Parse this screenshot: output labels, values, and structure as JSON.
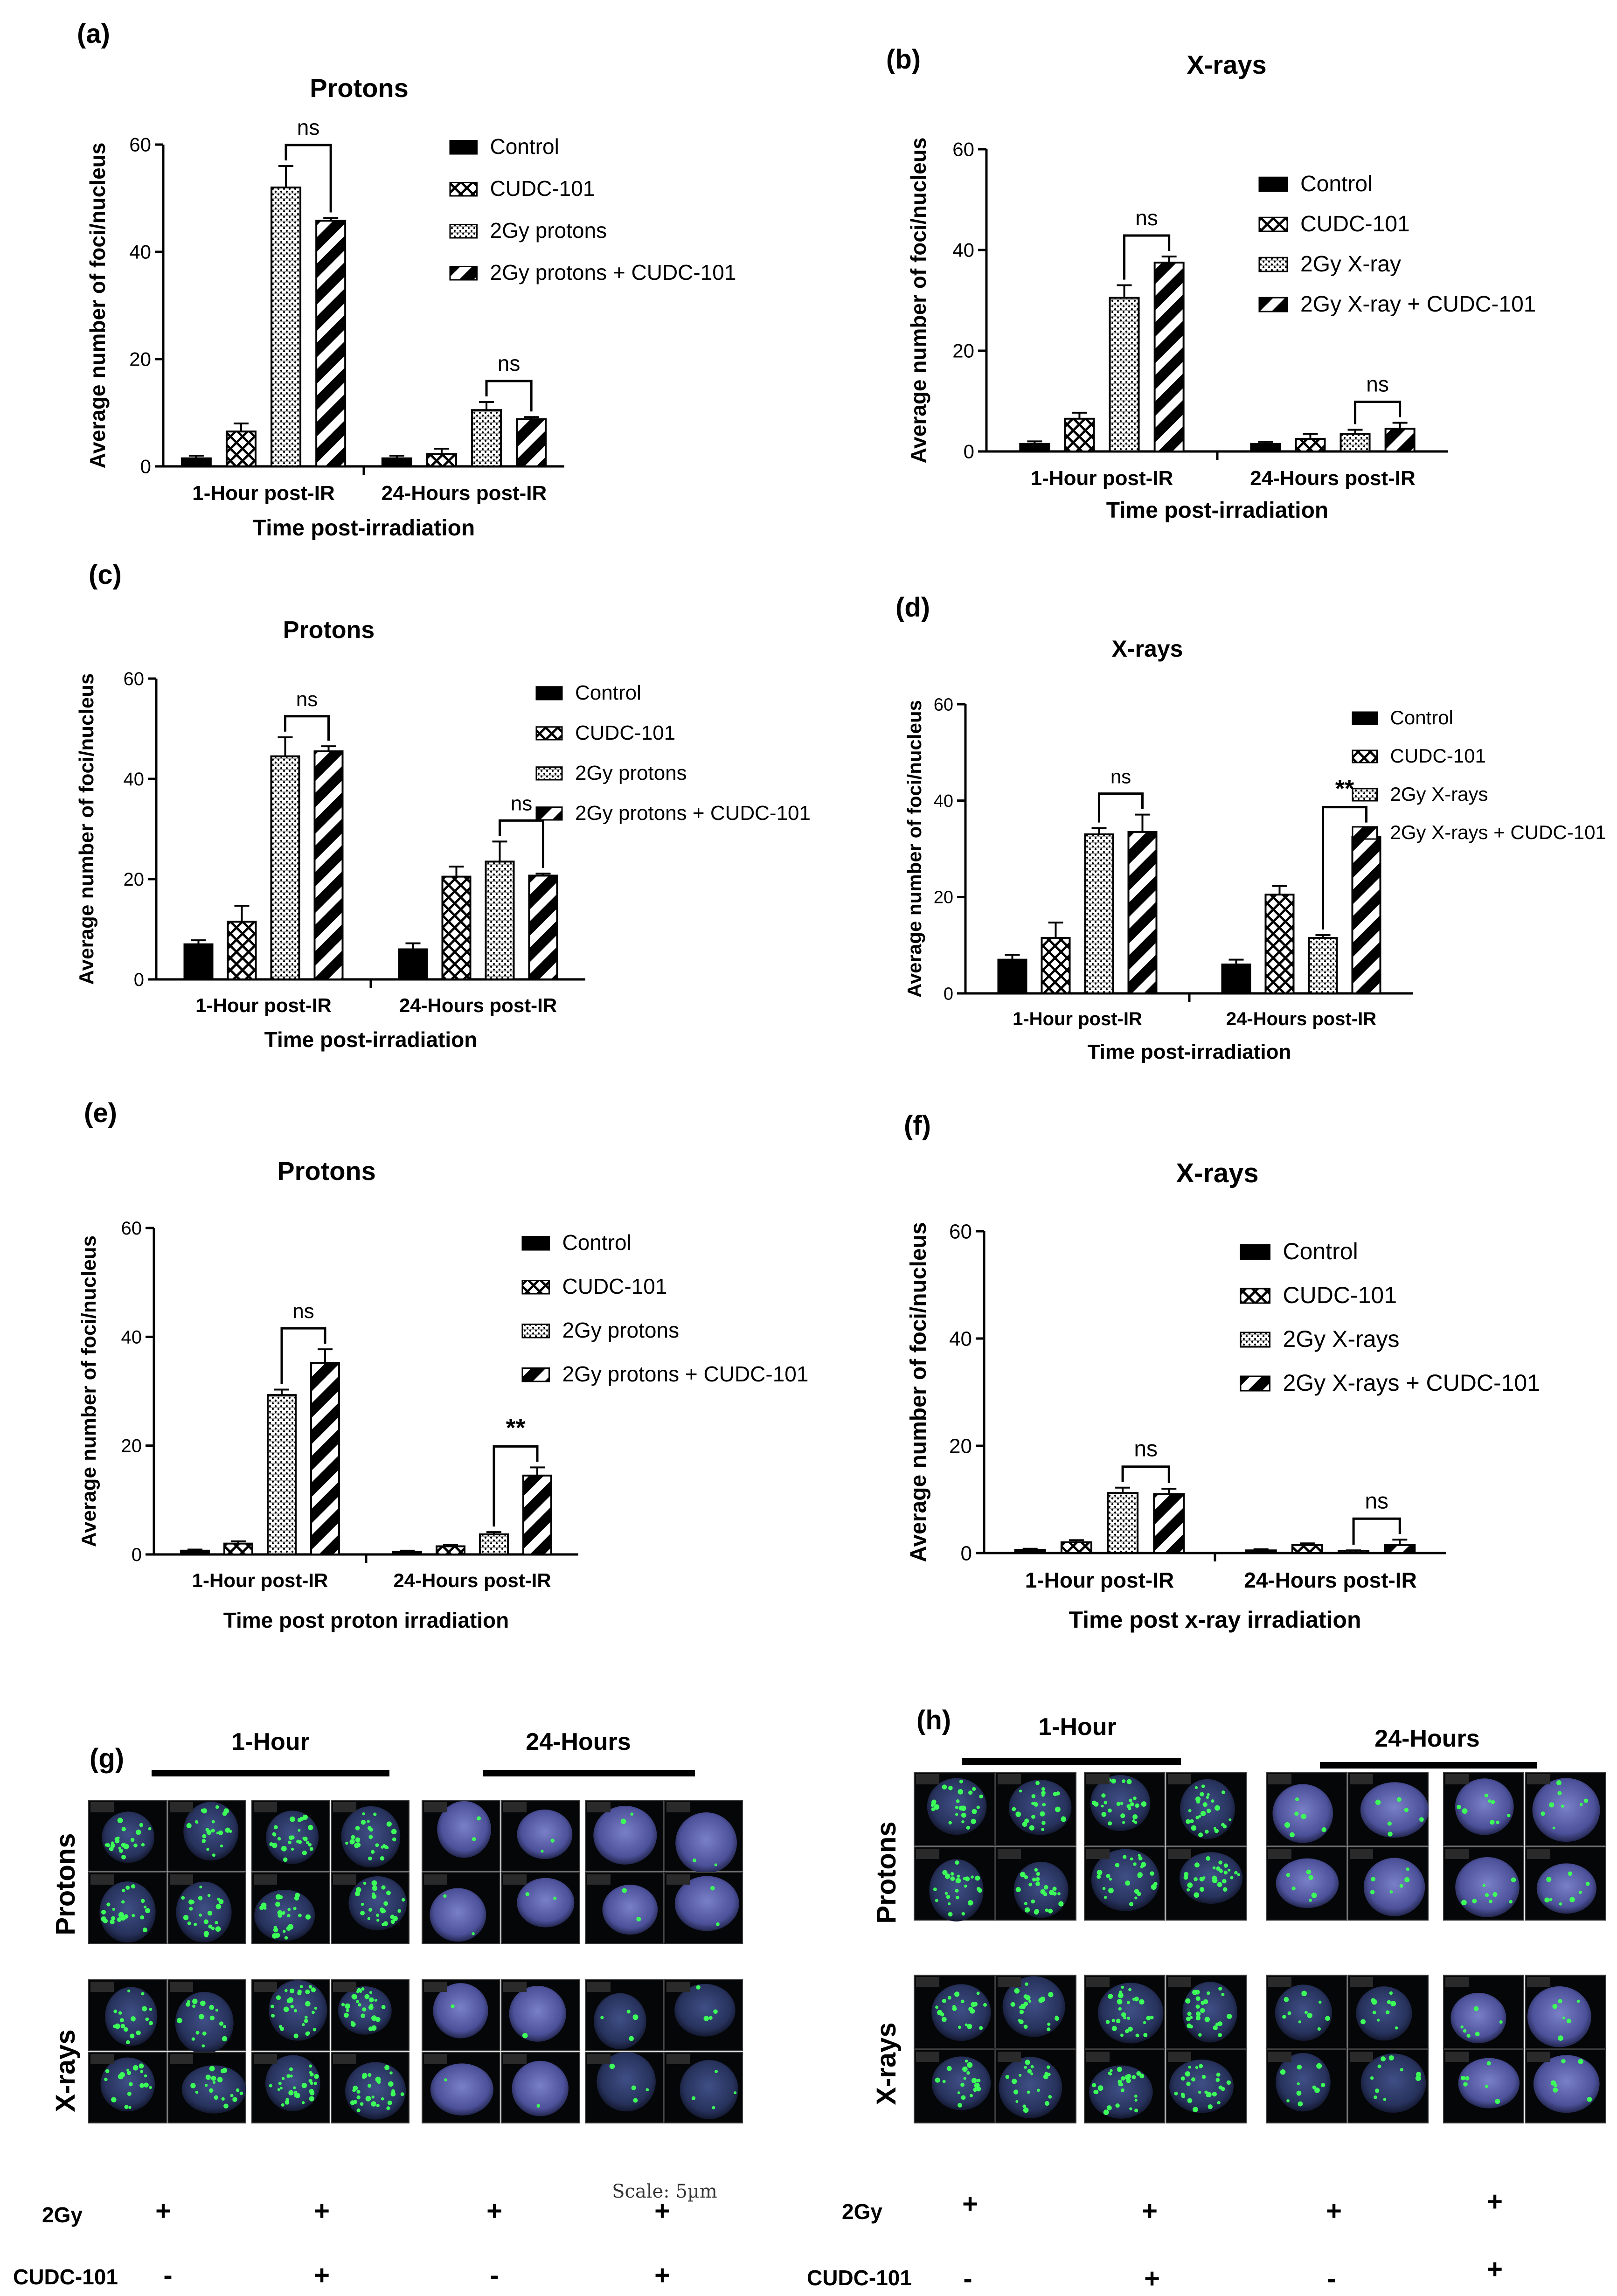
{
  "panels": [
    {
      "label": "(a)",
      "title": "Protons",
      "ylabel": "Average number of foci/nucleus",
      "xlabel": "Time post-irradiation"
    },
    {
      "label": "(b)",
      "title": "X-rays",
      "ylabel": "Average number of foci/nucleus",
      "xlabel": "Time post-irradiation"
    },
    {
      "label": "(c)",
      "title": "Protons",
      "ylabel": "Average number of foci/nucleus",
      "xlabel": "Time post-irradiation"
    },
    {
      "label": "(d)",
      "title": "X-rays",
      "ylabel": "Average number of foci/nucleus",
      "xlabel": "Time post-irradiation"
    },
    {
      "label": "(e)",
      "title": "Protons",
      "ylabel": "Average number of foci/nucleus",
      "xlabel": "Time post proton irradiation"
    },
    {
      "label": "(f)",
      "title": "X-rays",
      "ylabel": "Average number of foci/nucleus",
      "xlabel": "Time post x-ray irradiation"
    }
  ],
  "chart_data": [
    {
      "type": "bar",
      "title": "Protons",
      "xlabel": "Time post-irradiation",
      "ylabel": "Average number of foci/nucleus",
      "categories": [
        "1-Hour post-IR",
        "24-Hours post-IR"
      ],
      "ylim": [
        0,
        60
      ],
      "yticks": [
        0,
        20,
        40,
        60
      ],
      "series": [
        {
          "name": "Control",
          "values": [
            1.5,
            1.5
          ],
          "errors": [
            0.5,
            0.5
          ]
        },
        {
          "name": "CUDC-101",
          "values": [
            6.5,
            2.3
          ],
          "errors": [
            1.5,
            1.0
          ]
        },
        {
          "name": "2Gy protons",
          "values": [
            52,
            10.5
          ],
          "errors": [
            4,
            1.5
          ]
        },
        {
          "name": "2Gy protons + CUDC-101",
          "values": [
            45.8,
            8.8
          ],
          "errors": [
            0.5,
            0.4
          ]
        }
      ],
      "annotations": [
        {
          "text": "ns",
          "category": 0
        },
        {
          "text": "ns",
          "category": 1
        }
      ]
    },
    {
      "type": "bar",
      "title": "X-rays",
      "xlabel": "Time post-irradiation",
      "ylabel": "Average number of foci/nucleus",
      "categories": [
        "1-Hour post-IR",
        "24-Hours post-IR"
      ],
      "ylim": [
        0,
        60
      ],
      "yticks": [
        0,
        20,
        40,
        60
      ],
      "series": [
        {
          "name": "Control",
          "values": [
            1.5,
            1.5
          ],
          "errors": [
            0.5,
            0.4
          ]
        },
        {
          "name": "CUDC-101",
          "values": [
            6.5,
            2.5
          ],
          "errors": [
            1.2,
            1.0
          ]
        },
        {
          "name": "2Gy X-ray",
          "values": [
            30.5,
            3.5
          ],
          "errors": [
            2.5,
            0.8
          ]
        },
        {
          "name": "2Gy X-ray + CUDC-101",
          "values": [
            37.5,
            4.5
          ],
          "errors": [
            1.2,
            1.2
          ]
        }
      ],
      "annotations": [
        {
          "text": "ns",
          "category": 0
        },
        {
          "text": "ns",
          "category": 1
        }
      ]
    },
    {
      "type": "bar",
      "title": "Protons",
      "xlabel": "Time post-irradiation",
      "ylabel": "Average number of foci/nucleus",
      "categories": [
        "1-Hour post-IR",
        "24-Hours post-IR"
      ],
      "ylim": [
        0,
        60
      ],
      "yticks": [
        0,
        20,
        40,
        60
      ],
      "series": [
        {
          "name": "Control",
          "values": [
            7,
            6
          ],
          "errors": [
            0.8,
            1.2
          ]
        },
        {
          "name": "CUDC-101",
          "values": [
            11.5,
            20.5
          ],
          "errors": [
            3.2,
            2.0
          ]
        },
        {
          "name": "2Gy protons",
          "values": [
            44.5,
            23.5
          ],
          "errors": [
            3.8,
            4.0
          ]
        },
        {
          "name": "2Gy protons + CUDC-101",
          "values": [
            45.5,
            20.7
          ],
          "errors": [
            1.0,
            0.4
          ]
        }
      ],
      "annotations": [
        {
          "text": "ns",
          "category": 0
        },
        {
          "text": "ns",
          "category": 1
        }
      ]
    },
    {
      "type": "bar",
      "title": "X-rays",
      "xlabel": "Time post-irradiation",
      "ylabel": "Average number of foci/nucleus",
      "categories": [
        "1-Hour post-IR",
        "24-Hours post-IR"
      ],
      "ylim": [
        0,
        60
      ],
      "yticks": [
        0,
        20,
        40,
        60
      ],
      "series": [
        {
          "name": "Control",
          "values": [
            7,
            6
          ],
          "errors": [
            1.0,
            1.0
          ]
        },
        {
          "name": "CUDC-101",
          "values": [
            11.5,
            20.5
          ],
          "errors": [
            3.2,
            1.8
          ]
        },
        {
          "name": "2Gy X-rays",
          "values": [
            33,
            11.5
          ],
          "errors": [
            1.3,
            0.6
          ]
        },
        {
          "name": "2Gy X-rays + CUDC-101",
          "values": [
            33.5,
            32.5
          ],
          "errors": [
            3.6,
            1.8
          ]
        }
      ],
      "annotations": [
        {
          "text": "ns",
          "category": 0
        },
        {
          "text": "**",
          "category": 1
        }
      ]
    },
    {
      "type": "bar",
      "title": "Protons",
      "xlabel": "Time post proton irradiation",
      "ylabel": "Average number of foci/nucleus",
      "categories": [
        "1-Hour post-IR",
        "24-Hours post-IR"
      ],
      "ylim": [
        0,
        60
      ],
      "yticks": [
        0,
        20,
        40,
        60
      ],
      "series": [
        {
          "name": "Control",
          "values": [
            0.7,
            0.5
          ],
          "errors": [
            0.2,
            0.2
          ]
        },
        {
          "name": "CUDC-101",
          "values": [
            2,
            1.5
          ],
          "errors": [
            0.4,
            0.3
          ]
        },
        {
          "name": "2Gy protons",
          "values": [
            29.3,
            3.7
          ],
          "errors": [
            1.0,
            0.4
          ]
        },
        {
          "name": "2Gy protons + CUDC-101",
          "values": [
            35.2,
            14.5
          ],
          "errors": [
            2.5,
            1.5
          ]
        }
      ],
      "annotations": [
        {
          "text": "ns",
          "category": 0
        },
        {
          "text": "**",
          "category": 1
        }
      ]
    },
    {
      "type": "bar",
      "title": "X-rays",
      "xlabel": "Time post x-ray irradiation",
      "ylabel": "Average number of foci/nucleus",
      "categories": [
        "1-Hour post-IR",
        "24-Hours post-IR"
      ],
      "ylim": [
        0,
        60
      ],
      "yticks": [
        0,
        20,
        40,
        60
      ],
      "series": [
        {
          "name": "Control",
          "values": [
            0.6,
            0.5
          ],
          "errors": [
            0.2,
            0.2
          ]
        },
        {
          "name": "CUDC-101",
          "values": [
            2,
            1.5
          ],
          "errors": [
            0.4,
            0.3
          ]
        },
        {
          "name": "2Gy X-rays",
          "values": [
            11.2,
            0.4
          ],
          "errors": [
            1.0,
            0.1
          ]
        },
        {
          "name": "2Gy X-rays + CUDC-101",
          "values": [
            11,
            1.5
          ],
          "errors": [
            1.0,
            1.0
          ]
        }
      ],
      "annotations": [
        {
          "text": "ns",
          "category": 0
        },
        {
          "text": "ns",
          "category": 1
        }
      ]
    }
  ],
  "micro": {
    "g": {
      "label": "(g)",
      "time1": "1-Hour",
      "time2": "24-Hours",
      "row1": "Protons",
      "row2": "X-rays",
      "scale": "Scale: 5µm",
      "row_label_2gy": "2Gy",
      "row_label_cudc": "CUDC-101",
      "signs_2gy": [
        "+",
        "+",
        "+",
        "+"
      ],
      "signs_cudc": [
        "-",
        "+",
        "-",
        "+"
      ]
    },
    "h": {
      "label": "(h)",
      "time1": "1-Hour",
      "time2": "24-Hours",
      "row1": "Protons",
      "row2": "X-rays",
      "row_label_2gy": "2Gy",
      "row_label_cudc": "CUDC-101",
      "signs_2gy": [
        "+",
        "+",
        "+",
        "+"
      ],
      "signs_cudc": [
        "-",
        "+",
        "-",
        "+"
      ]
    }
  }
}
